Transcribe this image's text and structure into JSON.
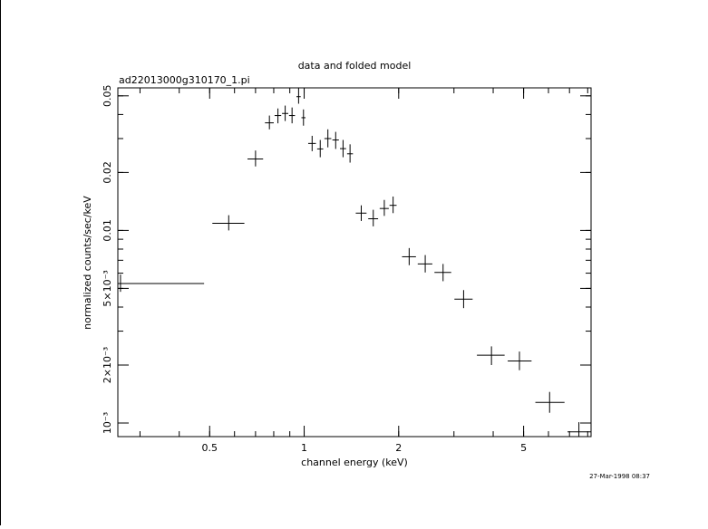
{
  "page": {
    "header": "data and folded model",
    "filename": "ad22013000g310170_1.pi",
    "timestamp": "27-Mar-1998 08:37"
  },
  "chart_data": {
    "type": "scatter",
    "title": "data and folded model",
    "subtitle": "ad22013000g310170_1.pi",
    "xlabel": "channel energy (keV)",
    "ylabel": "normalized counts/sec/keV",
    "x_scale": "log",
    "y_scale": "log",
    "xlim": [
      0.255,
      8.2
    ],
    "ylim": [
      0.00085,
      0.055
    ],
    "x_ticks": [
      {
        "value": 0.5,
        "label": "0.5"
      },
      {
        "value": 1,
        "label": "1"
      },
      {
        "value": 2,
        "label": "2"
      },
      {
        "value": 5,
        "label": "5"
      }
    ],
    "y_ticks": [
      {
        "value": 0.001,
        "label": "10⁻³"
      },
      {
        "value": 0.002,
        "label": "2×10⁻³"
      },
      {
        "value": 0.005,
        "label": "5×10⁻³"
      },
      {
        "value": 0.01,
        "label": "0.01"
      },
      {
        "value": 0.02,
        "label": "0.02"
      },
      {
        "value": 0.05,
        "label": "0.05"
      }
    ],
    "grid": false,
    "series": [
      {
        "points": [
          {
            "x": 0.26,
            "xlo": 0.255,
            "xhi": 0.48,
            "y": 0.0053,
            "ylo": 0.0048,
            "yhi": 0.0059
          },
          {
            "x": 0.575,
            "xlo": 0.51,
            "xhi": 0.645,
            "y": 0.0109,
            "ylo": 0.01,
            "yhi": 0.012
          },
          {
            "x": 0.7,
            "xlo": 0.66,
            "xhi": 0.74,
            "y": 0.0235,
            "ylo": 0.0215,
            "yhi": 0.026
          },
          {
            "x": 0.775,
            "xlo": 0.75,
            "xhi": 0.8,
            "y": 0.0362,
            "ylo": 0.0335,
            "yhi": 0.0395
          },
          {
            "x": 0.825,
            "xlo": 0.805,
            "xhi": 0.845,
            "y": 0.0395,
            "ylo": 0.036,
            "yhi": 0.043
          },
          {
            "x": 0.87,
            "xlo": 0.85,
            "xhi": 0.89,
            "y": 0.0405,
            "ylo": 0.037,
            "yhi": 0.0445
          },
          {
            "x": 0.915,
            "xlo": 0.895,
            "xhi": 0.935,
            "y": 0.0395,
            "ylo": 0.036,
            "yhi": 0.0435
          },
          {
            "x": 0.96,
            "xlo": 0.945,
            "xhi": 0.975,
            "y": 0.0495,
            "ylo": 0.0455,
            "yhi": 0.055
          },
          {
            "x": 0.995,
            "xlo": 0.98,
            "xhi": 1.01,
            "y": 0.0385,
            "ylo": 0.035,
            "yhi": 0.0425
          },
          {
            "x": 1.06,
            "xlo": 1.03,
            "xhi": 1.09,
            "y": 0.0283,
            "ylo": 0.0258,
            "yhi": 0.031
          },
          {
            "x": 1.125,
            "xlo": 1.1,
            "xhi": 1.15,
            "y": 0.0265,
            "ylo": 0.024,
            "yhi": 0.0295
          },
          {
            "x": 1.19,
            "xlo": 1.16,
            "xhi": 1.22,
            "y": 0.03,
            "ylo": 0.027,
            "yhi": 0.0335
          },
          {
            "x": 1.26,
            "xlo": 1.23,
            "xhi": 1.29,
            "y": 0.0295,
            "ylo": 0.0265,
            "yhi": 0.0325
          },
          {
            "x": 1.33,
            "xlo": 1.3,
            "xhi": 1.36,
            "y": 0.0266,
            "ylo": 0.024,
            "yhi": 0.0295
          },
          {
            "x": 1.4,
            "xlo": 1.37,
            "xhi": 1.43,
            "y": 0.025,
            "ylo": 0.0225,
            "yhi": 0.028
          },
          {
            "x": 1.52,
            "xlo": 1.46,
            "xhi": 1.58,
            "y": 0.0123,
            "ylo": 0.0112,
            "yhi": 0.0135
          },
          {
            "x": 1.66,
            "xlo": 1.6,
            "xhi": 1.72,
            "y": 0.0115,
            "ylo": 0.0105,
            "yhi": 0.0128
          },
          {
            "x": 1.8,
            "xlo": 1.74,
            "xhi": 1.86,
            "y": 0.013,
            "ylo": 0.0119,
            "yhi": 0.0144
          },
          {
            "x": 1.92,
            "xlo": 1.87,
            "xhi": 1.97,
            "y": 0.0135,
            "ylo": 0.0123,
            "yhi": 0.015
          },
          {
            "x": 2.16,
            "xlo": 2.05,
            "xhi": 2.27,
            "y": 0.0073,
            "ylo": 0.0066,
            "yhi": 0.0081
          },
          {
            "x": 2.43,
            "xlo": 2.3,
            "xhi": 2.56,
            "y": 0.0067,
            "ylo": 0.00605,
            "yhi": 0.00745
          },
          {
            "x": 2.77,
            "xlo": 2.6,
            "xhi": 2.94,
            "y": 0.00605,
            "ylo": 0.00545,
            "yhi": 0.0067
          },
          {
            "x": 3.22,
            "xlo": 3.01,
            "xhi": 3.44,
            "y": 0.0044,
            "ylo": 0.00395,
            "yhi": 0.0049
          },
          {
            "x": 3.95,
            "xlo": 3.55,
            "xhi": 4.35,
            "y": 0.00225,
            "ylo": 0.002,
            "yhi": 0.0025
          },
          {
            "x": 4.85,
            "xlo": 4.45,
            "xhi": 5.3,
            "y": 0.0021,
            "ylo": 0.00188,
            "yhi": 0.00235
          },
          {
            "x": 6.05,
            "xlo": 5.45,
            "xhi": 6.75,
            "y": 0.00128,
            "ylo": 0.00113,
            "yhi": 0.00145
          },
          {
            "x": 7.5,
            "xlo": 6.9,
            "xhi": 8.2,
            "y": 0.0009,
            "ylo": 0.00085,
            "yhi": 0.00101
          }
        ]
      }
    ]
  }
}
